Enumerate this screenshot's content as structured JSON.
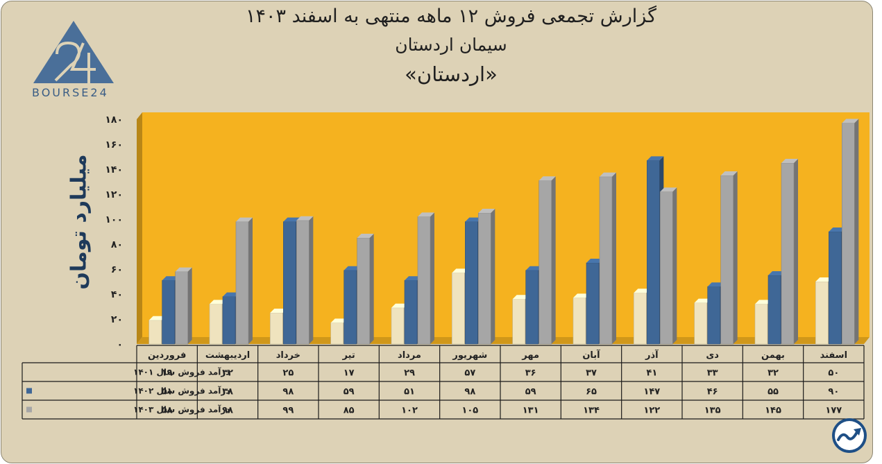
{
  "chart_data": {
    "type": "bar",
    "title": "گزارش تجمعی فروش ۱۲ ماهه منتهی به اسفند ۱۴۰۳",
    "subtitle": "سیمان اردستان",
    "subtitle2": "«اردستان»",
    "ylabel": "میلیارد تومان",
    "ylim": [
      0,
      180
    ],
    "ytick_labels": [
      "۰",
      "۲۰",
      "۴۰",
      "۶۰",
      "۸۰",
      "۱۰۰",
      "۱۲۰",
      "۱۴۰",
      "۱۶۰",
      "۱۸۰"
    ],
    "yticks": [
      0,
      20,
      40,
      60,
      80,
      100,
      120,
      140,
      160,
      180
    ],
    "categories": [
      "فروردین",
      "اردیبهشت",
      "خرداد",
      "تیر",
      "مرداد",
      "شهریور",
      "مهر",
      "آبان",
      "آذر",
      "دی",
      "بهمن",
      "اسفند"
    ],
    "series": [
      {
        "name": "درآمد فروش سال ۱۴۰۱",
        "color": "#efe3be",
        "values": [
          19,
          32,
          25,
          17,
          29,
          57,
          36,
          37,
          41,
          33,
          32,
          50
        ],
        "labels": [
          "۱۹",
          "۳۲",
          "۲۵",
          "۱۷",
          "۲۹",
          "۵۷",
          "۳۶",
          "۳۷",
          "۴۱",
          "۳۳",
          "۳۲",
          "۵۰"
        ]
      },
      {
        "name": "درآمد فروش سال ۱۴۰۲",
        "color": "#3f6796",
        "values": [
          51,
          38,
          98,
          59,
          51,
          98,
          59,
          65,
          147,
          46,
          55,
          90
        ],
        "labels": [
          "۵۱",
          "۳۸",
          "۹۸",
          "۵۹",
          "۵۱",
          "۹۸",
          "۵۹",
          "۶۵",
          "۱۴۷",
          "۴۶",
          "۵۵",
          "۹۰"
        ]
      },
      {
        "name": "درآمد فروش سال ۱۴۰۳",
        "color": "#a6a6a6",
        "values": [
          58,
          98,
          99,
          85,
          102,
          105,
          131,
          134,
          122,
          135,
          145,
          177
        ],
        "labels": [
          "۵۸",
          "۹۸",
          "۹۹",
          "۸۵",
          "۱۰۲",
          "۱۰۵",
          "۱۳۱",
          "۱۳۴",
          "۱۲۲",
          "۱۳۵",
          "۱۴۵",
          "۱۷۷"
        ]
      }
    ],
    "plot_background": "#f5b21f",
    "data_table": true
  },
  "logo": {
    "name": "bourse24-logo",
    "text": "BOURSE24",
    "color": "#4a6f99"
  },
  "brand_icon": {
    "name": "trend-arrow-icon",
    "color": "#1e4f86"
  }
}
